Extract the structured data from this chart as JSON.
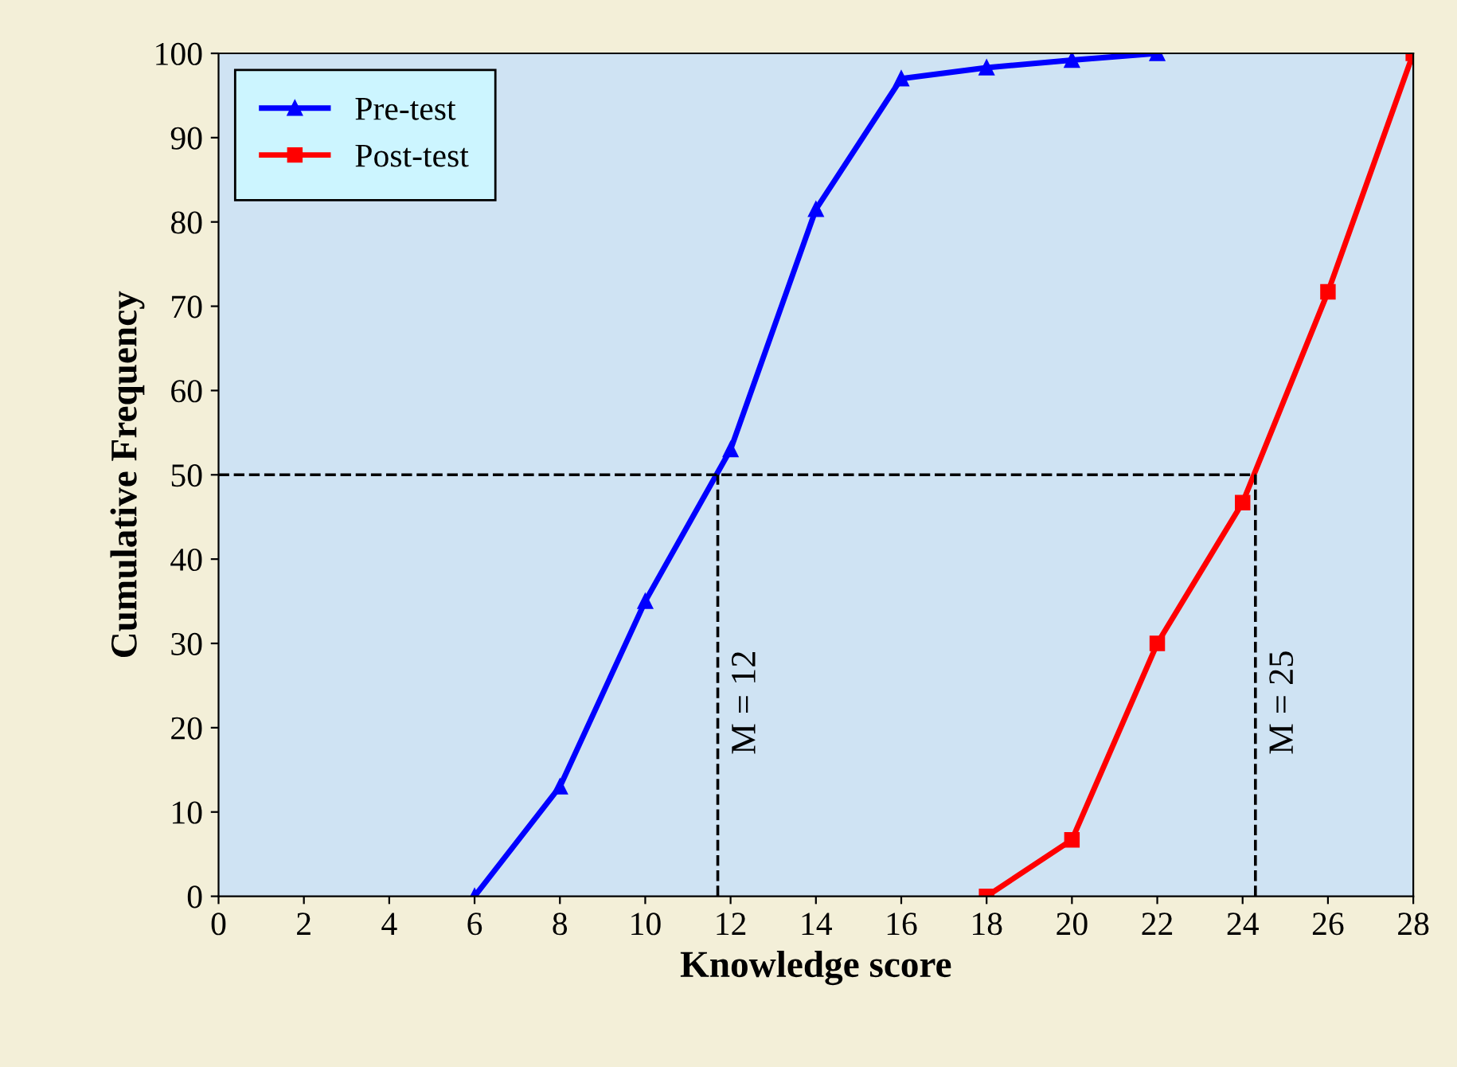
{
  "chart_data": {
    "type": "line",
    "xlabel": "Knowledge score",
    "ylabel": "Cumulative Frequency",
    "series": [
      {
        "name": "Pre-test",
        "color": "#0000ff",
        "marker": "triangle",
        "x": [
          6,
          8,
          10,
          12,
          14,
          16,
          18,
          20,
          22
        ],
        "values": [
          0,
          13,
          35,
          53,
          81.5,
          97,
          98.3,
          99.2,
          100
        ]
      },
      {
        "name": "Post-test",
        "color": "#ff0000",
        "marker": "square",
        "x": [
          18,
          20,
          22,
          24,
          26,
          28
        ],
        "values": [
          0,
          6.7,
          30,
          46.7,
          71.7,
          100
        ]
      }
    ],
    "xlim": [
      0,
      28
    ],
    "xticks": [
      0,
      2,
      4,
      6,
      8,
      10,
      12,
      14,
      16,
      18,
      20,
      22,
      24,
      26,
      28
    ],
    "ylim": [
      0,
      100
    ],
    "yticks": [
      0,
      10,
      20,
      30,
      40,
      50,
      60,
      70,
      80,
      90,
      100
    ],
    "ref_lines": [
      {
        "axis": "y",
        "value": 50,
        "line_style": "dashed",
        "color": "#000000"
      },
      {
        "axis": "x",
        "value": 11.7,
        "line_style": "dashed",
        "color": "#000000"
      },
      {
        "axis": "x",
        "value": 24.3,
        "line_style": "dashed",
        "color": "#000000"
      }
    ],
    "annotations": [
      "M = 12",
      "M = 25"
    ],
    "legend": "top left",
    "grid": false
  }
}
